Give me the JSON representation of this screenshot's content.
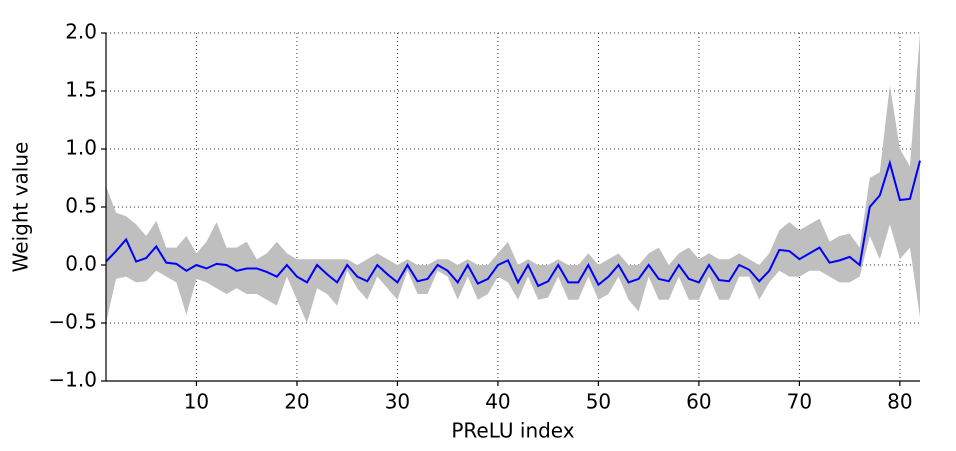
{
  "chart_data": {
    "type": "band-line",
    "x_label": "PReLU index",
    "y_label": "Weight value",
    "x": [
      1,
      2,
      3,
      4,
      5,
      6,
      7,
      8,
      9,
      10,
      11,
      12,
      13,
      14,
      15,
      16,
      17,
      18,
      19,
      20,
      21,
      22,
      23,
      24,
      25,
      26,
      27,
      28,
      29,
      30,
      31,
      32,
      33,
      34,
      35,
      36,
      37,
      38,
      39,
      40,
      41,
      42,
      43,
      44,
      45,
      46,
      47,
      48,
      49,
      50,
      51,
      52,
      53,
      54,
      55,
      56,
      57,
      58,
      59,
      60,
      61,
      62,
      63,
      64,
      65,
      66,
      67,
      68,
      69,
      70,
      71,
      72,
      73,
      74,
      75,
      76,
      77,
      78,
      79,
      80,
      81,
      82
    ],
    "values": [
      0.03,
      0.12,
      0.22,
      0.03,
      0.06,
      0.16,
      0.02,
      0.01,
      -0.05,
      0.0,
      -0.03,
      0.01,
      0.0,
      -0.05,
      -0.03,
      -0.03,
      -0.06,
      -0.1,
      0.0,
      -0.1,
      -0.15,
      0.0,
      -0.08,
      -0.15,
      0.0,
      -0.1,
      -0.14,
      0.0,
      -0.08,
      -0.15,
      0.0,
      -0.14,
      -0.12,
      0.0,
      -0.05,
      -0.15,
      0.0,
      -0.16,
      -0.12,
      0.0,
      0.04,
      -0.15,
      0.0,
      -0.18,
      -0.14,
      0.0,
      -0.15,
      -0.15,
      0.0,
      -0.17,
      -0.1,
      0.0,
      -0.15,
      -0.12,
      0.0,
      -0.12,
      -0.14,
      0.0,
      -0.12,
      -0.15,
      0.0,
      -0.13,
      -0.14,
      0.0,
      -0.04,
      -0.14,
      -0.05,
      0.13,
      0.12,
      0.05,
      0.1,
      0.15,
      0.02,
      0.04,
      0.07,
      0.0,
      0.5,
      0.6,
      0.88,
      0.56,
      0.57,
      0.9
    ],
    "upper": [
      0.68,
      0.45,
      0.42,
      0.35,
      0.25,
      0.38,
      0.15,
      0.15,
      0.25,
      0.1,
      0.2,
      0.37,
      0.15,
      0.15,
      0.2,
      0.05,
      0.1,
      0.2,
      0.1,
      0.05,
      0.05,
      0.05,
      0.05,
      0.05,
      0.05,
      0.0,
      0.05,
      0.1,
      0.05,
      0.0,
      0.05,
      0.0,
      0.0,
      0.05,
      0.05,
      0.0,
      0.05,
      0.0,
      0.0,
      0.1,
      0.2,
      0.0,
      0.05,
      0.0,
      0.0,
      0.05,
      0.0,
      0.0,
      0.1,
      0.0,
      0.05,
      0.1,
      0.0,
      0.0,
      0.1,
      0.15,
      0.0,
      0.1,
      0.15,
      0.05,
      0.1,
      0.05,
      0.05,
      0.1,
      0.05,
      0.0,
      0.1,
      0.3,
      0.37,
      0.3,
      0.35,
      0.4,
      0.2,
      0.25,
      0.27,
      0.15,
      0.75,
      0.8,
      1.55,
      1.0,
      0.85,
      2.0
    ],
    "lower": [
      -0.5,
      -0.12,
      -0.1,
      -0.15,
      -0.14,
      -0.05,
      -0.1,
      -0.15,
      -0.43,
      -0.12,
      -0.15,
      -0.2,
      -0.25,
      -0.2,
      -0.25,
      -0.25,
      -0.3,
      -0.35,
      -0.1,
      -0.3,
      -0.5,
      -0.2,
      -0.25,
      -0.35,
      -0.05,
      -0.2,
      -0.3,
      -0.1,
      -0.2,
      -0.3,
      -0.05,
      -0.25,
      -0.25,
      -0.05,
      -0.1,
      -0.3,
      -0.1,
      -0.3,
      -0.25,
      -0.1,
      -0.15,
      -0.3,
      -0.1,
      -0.3,
      -0.28,
      -0.1,
      -0.3,
      -0.3,
      -0.1,
      -0.3,
      -0.25,
      -0.1,
      -0.3,
      -0.4,
      -0.1,
      -0.3,
      -0.3,
      -0.1,
      -0.3,
      -0.3,
      -0.1,
      -0.3,
      -0.3,
      -0.1,
      -0.1,
      -0.3,
      -0.15,
      -0.05,
      -0.1,
      -0.1,
      -0.05,
      -0.05,
      -0.1,
      -0.15,
      -0.15,
      -0.1,
      0.25,
      0.05,
      0.35,
      0.05,
      0.15,
      -0.45
    ],
    "color": "#0000ff",
    "band_color": "#bfbfbf",
    "xlim": [
      1,
      82
    ],
    "ylim": [
      -1.0,
      2.0
    ],
    "xticks": [
      10,
      20,
      30,
      40,
      50,
      60,
      70,
      80
    ],
    "yticks": [
      {
        "value": -1.0,
        "label": "−1.0"
      },
      {
        "value": -0.5,
        "label": "−0.5"
      },
      {
        "value": 0.0,
        "label": "0.0"
      },
      {
        "value": 0.5,
        "label": "0.5"
      },
      {
        "value": 1.0,
        "label": "1.0"
      },
      {
        "value": 1.5,
        "label": "1.5"
      },
      {
        "value": 2.0,
        "label": "2.0"
      }
    ],
    "grid": true
  }
}
